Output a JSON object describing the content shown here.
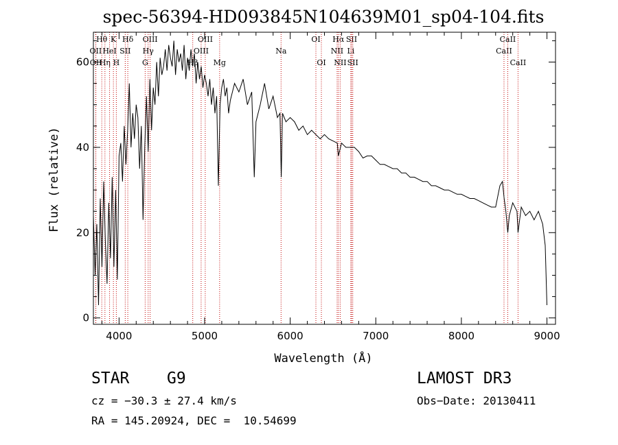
{
  "chart_data": {
    "type": "line",
    "title": "spec-56394-HD093845N104639M01_sp04-104.fits",
    "xlabel": "Wavelength (Å)",
    "ylabel": "Flux (relative)",
    "xlim": [
      3700,
      9100
    ],
    "ylim": [
      -1.5,
      67
    ],
    "x_ticks": [
      4000,
      5000,
      6000,
      7000,
      8000,
      9000
    ],
    "y_ticks": [
      0,
      20,
      40,
      60
    ],
    "grid": false,
    "line_color": "#000000",
    "marker_color": "#c00000",
    "series": [
      {
        "name": "flux",
        "x": [
          3700,
          3720,
          3740,
          3760,
          3780,
          3800,
          3820,
          3840,
          3860,
          3880,
          3900,
          3920,
          3940,
          3960,
          3980,
          4000,
          4020,
          4040,
          4060,
          4080,
          4100,
          4120,
          4140,
          4160,
          4180,
          4200,
          4220,
          4240,
          4260,
          4280,
          4300,
          4320,
          4340,
          4360,
          4380,
          4400,
          4420,
          4440,
          4460,
          4480,
          4500,
          4520,
          4540,
          4560,
          4580,
          4600,
          4620,
          4640,
          4660,
          4680,
          4700,
          4720,
          4740,
          4760,
          4780,
          4800,
          4820,
          4840,
          4860,
          4880,
          4900,
          4920,
          4940,
          4960,
          4980,
          5000,
          5020,
          5040,
          5060,
          5080,
          5100,
          5120,
          5140,
          5160,
          5180,
          5200,
          5220,
          5240,
          5260,
          5280,
          5300,
          5350,
          5400,
          5450,
          5500,
          5550,
          5580,
          5600,
          5650,
          5700,
          5750,
          5800,
          5850,
          5880,
          5895,
          5910,
          5950,
          6000,
          6050,
          6100,
          6150,
          6200,
          6250,
          6300,
          6350,
          6400,
          6450,
          6500,
          6550,
          6563,
          6600,
          6650,
          6700,
          6750,
          6800,
          6850,
          6900,
          6950,
          7000,
          7050,
          7100,
          7150,
          7200,
          7250,
          7300,
          7350,
          7400,
          7450,
          7500,
          7550,
          7600,
          7650,
          7700,
          7750,
          7800,
          7850,
          7900,
          7950,
          8000,
          8050,
          8100,
          8150,
          8200,
          8250,
          8300,
          8350,
          8400,
          8450,
          8480,
          8500,
          8520,
          8542,
          8560,
          8600,
          8650,
          8662,
          8700,
          8750,
          8800,
          8850,
          8900,
          8950,
          8980,
          9000
        ],
        "y": [
          24,
          10,
          22,
          3,
          28,
          12,
          32,
          18,
          8,
          27,
          14,
          33,
          12,
          30,
          9,
          38,
          41,
          32,
          45,
          36,
          44,
          55,
          40,
          48,
          42,
          50,
          47,
          35,
          45,
          23,
          40,
          52,
          39,
          56,
          44,
          54,
          50,
          60,
          52,
          61,
          57,
          59,
          63,
          58,
          64,
          61,
          59,
          65,
          57,
          63,
          60,
          62,
          58,
          64,
          56,
          61,
          58,
          63,
          59,
          62,
          55,
          60,
          56,
          59,
          54,
          57,
          55,
          52,
          56,
          50,
          54,
          48,
          52,
          31,
          50,
          54,
          56,
          52,
          54,
          48,
          51,
          55,
          53,
          56,
          50,
          53,
          33,
          46,
          50,
          55,
          49,
          52,
          47,
          48,
          33,
          48,
          46,
          47,
          46,
          44,
          45,
          43,
          44,
          43,
          42,
          43,
          42,
          41.5,
          41,
          38,
          41,
          40,
          40,
          40,
          39,
          37.5,
          38,
          38,
          37,
          36,
          36,
          35.5,
          35,
          35,
          34,
          34,
          33,
          33,
          32.5,
          32,
          32,
          31,
          31,
          30.5,
          30,
          30,
          29.5,
          29,
          29,
          28.5,
          28,
          28,
          27.5,
          27,
          26.5,
          26,
          26,
          31,
          32,
          28,
          25,
          20,
          24,
          27,
          25,
          20,
          26,
          24,
          25,
          23,
          25,
          22,
          17,
          3
        ]
      }
    ],
    "line_markers": [
      {
        "label": "Hθ",
        "x": 3798,
        "row": 1
      },
      {
        "label": "OII",
        "x": 3727,
        "row": 2
      },
      {
        "label": "OII",
        "x": 3729,
        "row": 3
      },
      {
        "label": "Hη",
        "x": 3835,
        "row": 3
      },
      {
        "label": "HeI",
        "x": 3889,
        "row": 2
      },
      {
        "label": "K",
        "x": 3934,
        "row": 1
      },
      {
        "label": "H",
        "x": 3968,
        "row": 3
      },
      {
        "label": "SII",
        "x": 4072,
        "row": 2
      },
      {
        "label": "Hδ",
        "x": 4102,
        "row": 1
      },
      {
        "label": "G",
        "x": 4305,
        "row": 3
      },
      {
        "label": "OIII",
        "x": 4363,
        "row": 1
      },
      {
        "label": "Hγ",
        "x": 4340,
        "row": 2
      },
      {
        "label": "Hβ",
        "x": 4861,
        "row": 3
      },
      {
        "label": "OIII",
        "x": 4959,
        "row": 2
      },
      {
        "label": "OIII",
        "x": 5007,
        "row": 1
      },
      {
        "label": "Mg",
        "x": 5175,
        "row": 3
      },
      {
        "label": "Na",
        "x": 5893,
        "row": 2
      },
      {
        "label": "OI",
        "x": 6300,
        "row": 1
      },
      {
        "label": "OI",
        "x": 6364,
        "row": 3
      },
      {
        "label": "NII",
        "x": 6548,
        "row": 2
      },
      {
        "label": "Hα",
        "x": 6563,
        "row": 1
      },
      {
        "label": "NII",
        "x": 6584,
        "row": 3
      },
      {
        "label": "Li",
        "x": 6708,
        "row": 2
      },
      {
        "label": "SII",
        "x": 6717,
        "row": 1
      },
      {
        "label": "SII",
        "x": 6731,
        "row": 3
      },
      {
        "label": "CaII",
        "x": 8498,
        "row": 2
      },
      {
        "label": "CaII",
        "x": 8542,
        "row": 1
      },
      {
        "label": "CaII",
        "x": 8662,
        "row": 3
      }
    ]
  },
  "info": {
    "class_label": "STAR",
    "subclass": "G9",
    "survey": "LAMOST DR3",
    "cz": "cz = −30.3 ± 27.4 km/s",
    "obs_date": "Obs−Date: 20130411",
    "coords": "RA = 145.20924, DEC =  10.54699"
  }
}
